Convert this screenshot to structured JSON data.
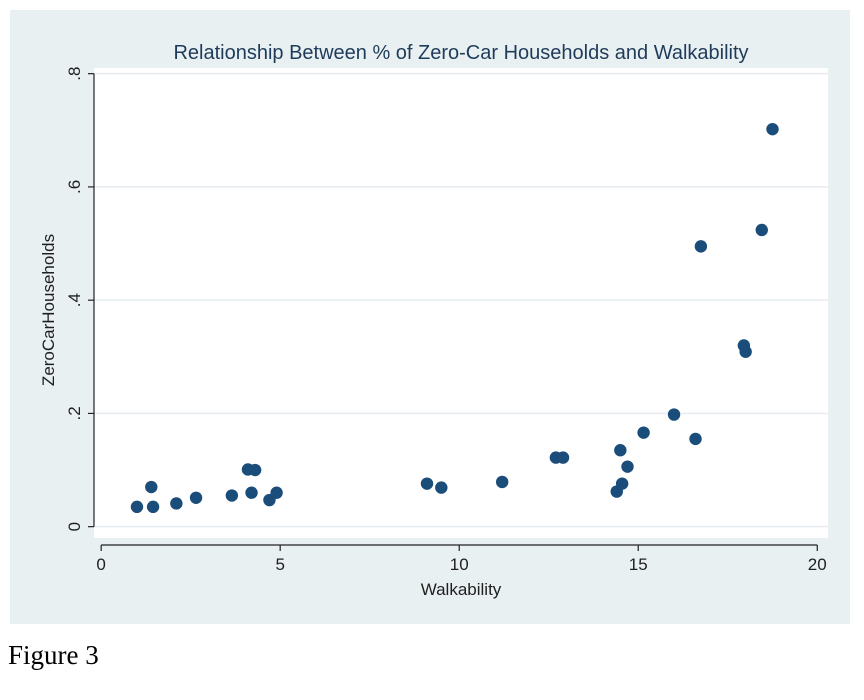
{
  "figure_caption": "Figure 3",
  "colors": {
    "outer_background": "#e9f0f2",
    "plot_background": "#ffffff",
    "gridline": "#e6ecef",
    "marker": "#1a4d7a",
    "title": "#1f3b5a",
    "axis": "#222222"
  },
  "chart_data": {
    "type": "scatter",
    "title": "Relationship Between % of Zero-Car Households and Walkability",
    "xlabel": "Walkability",
    "ylabel": "ZeroCarHouseholds",
    "xlim": [
      -0.2,
      20.3
    ],
    "ylim": [
      -0.02,
      0.81
    ],
    "xticks": [
      0,
      5,
      10,
      15,
      20
    ],
    "xtick_labels": [
      "0",
      "5",
      "10",
      "15",
      "20"
    ],
    "yticks": [
      0,
      0.2,
      0.4,
      0.6,
      0.8
    ],
    "ytick_labels": [
      "0",
      ".2",
      ".4",
      ".6",
      ".8"
    ],
    "grid": true,
    "legend": false,
    "points": [
      {
        "x": 1.0,
        "y": 0.035
      },
      {
        "x": 1.4,
        "y": 0.07
      },
      {
        "x": 1.45,
        "y": 0.035
      },
      {
        "x": 2.1,
        "y": 0.041
      },
      {
        "x": 2.65,
        "y": 0.051
      },
      {
        "x": 3.65,
        "y": 0.055
      },
      {
        "x": 4.1,
        "y": 0.101
      },
      {
        "x": 4.3,
        "y": 0.1
      },
      {
        "x": 4.2,
        "y": 0.06
      },
      {
        "x": 4.7,
        "y": 0.047
      },
      {
        "x": 4.9,
        "y": 0.06
      },
      {
        "x": 9.1,
        "y": 0.076
      },
      {
        "x": 9.5,
        "y": 0.069
      },
      {
        "x": 11.2,
        "y": 0.079
      },
      {
        "x": 12.7,
        "y": 0.122
      },
      {
        "x": 12.9,
        "y": 0.122
      },
      {
        "x": 14.4,
        "y": 0.062
      },
      {
        "x": 14.5,
        "y": 0.135
      },
      {
        "x": 14.55,
        "y": 0.076
      },
      {
        "x": 14.7,
        "y": 0.106
      },
      {
        "x": 15.15,
        "y": 0.166
      },
      {
        "x": 16.0,
        "y": 0.198
      },
      {
        "x": 16.6,
        "y": 0.155
      },
      {
        "x": 16.75,
        "y": 0.495
      },
      {
        "x": 17.95,
        "y": 0.32
      },
      {
        "x": 18.0,
        "y": 0.309
      },
      {
        "x": 18.45,
        "y": 0.524
      },
      {
        "x": 18.75,
        "y": 0.702
      }
    ]
  }
}
